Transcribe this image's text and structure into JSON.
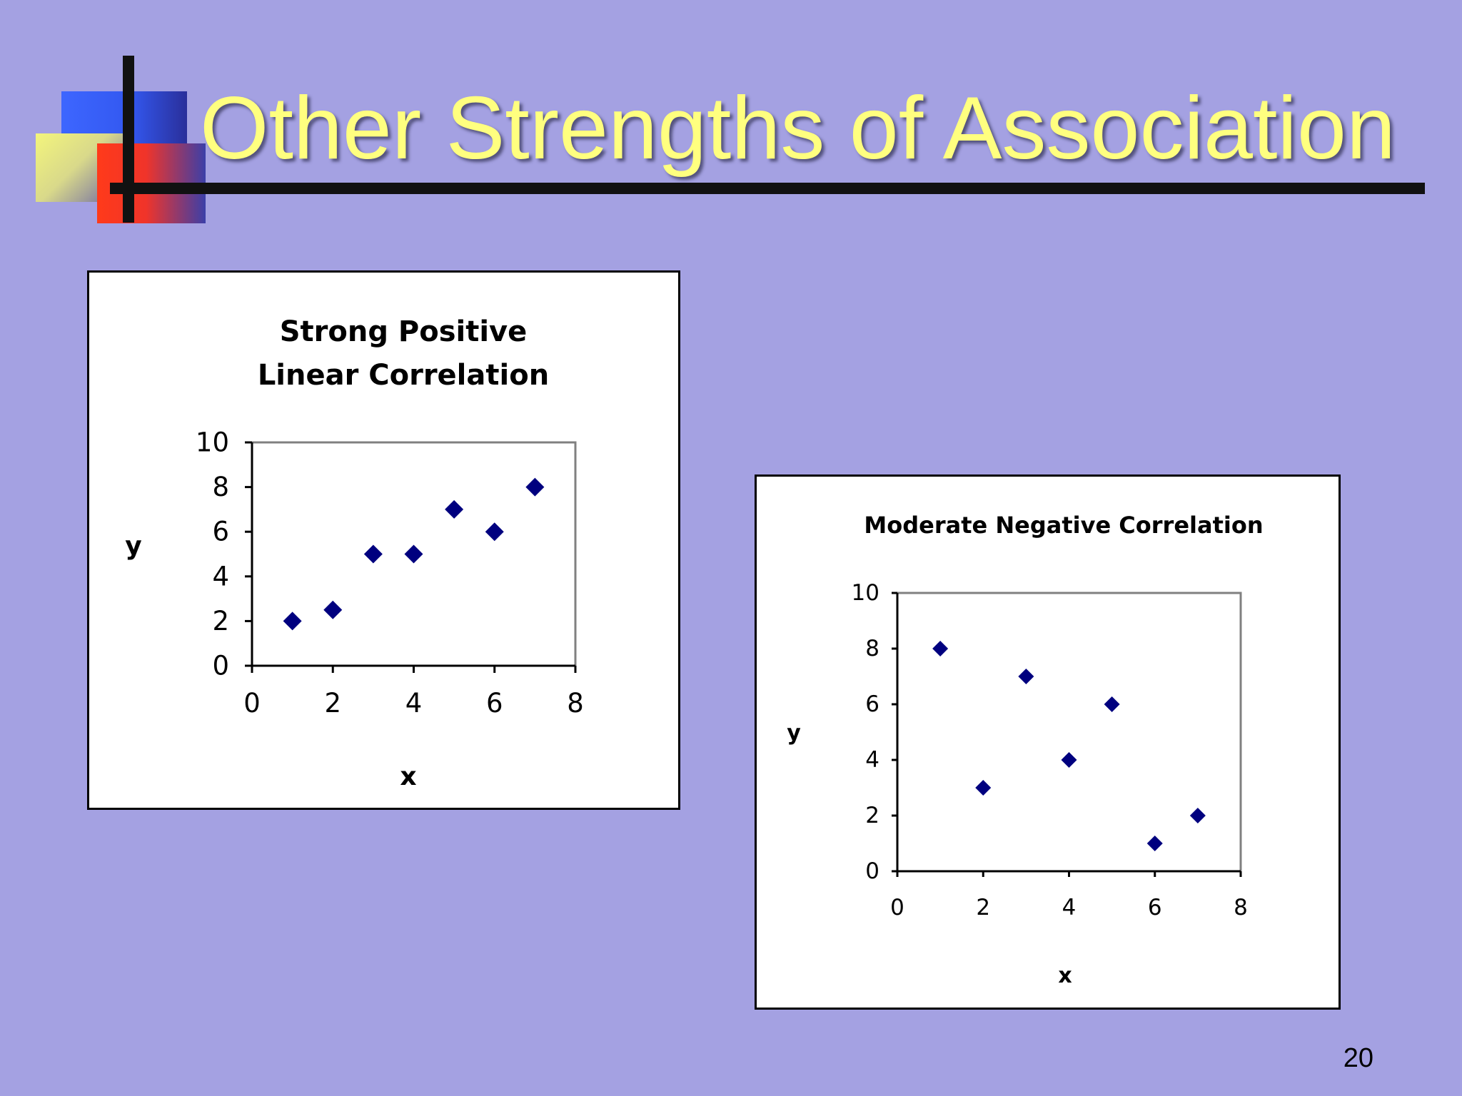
{
  "slide": {
    "title": "Other Strengths of Association",
    "page_number": "20"
  },
  "colors": {
    "background": "#a4a1e2",
    "title": "#ffff7f",
    "marker": "#00007f"
  },
  "chart_data": [
    {
      "type": "scatter",
      "title_lines": [
        "Strong Positive",
        "Linear Correlation"
      ],
      "xlabel": "x",
      "ylabel": "y",
      "xlim": [
        0,
        8
      ],
      "ylim": [
        0,
        10
      ],
      "xticks": [
        0,
        2,
        4,
        6,
        8
      ],
      "yticks": [
        0,
        2,
        4,
        6,
        8,
        10
      ],
      "grid": false,
      "marker": "diamond",
      "series": [
        {
          "x": [
            1,
            2,
            3,
            4,
            5,
            6,
            7
          ],
          "y": [
            2,
            2.5,
            5,
            5,
            7,
            6,
            8
          ]
        }
      ]
    },
    {
      "type": "scatter",
      "title_lines": [
        "Moderate Negative Correlation"
      ],
      "xlabel": "x",
      "ylabel": "y",
      "xlim": [
        0,
        8
      ],
      "ylim": [
        0,
        10
      ],
      "xticks": [
        0,
        2,
        4,
        6,
        8
      ],
      "yticks": [
        0,
        2,
        4,
        6,
        8,
        10
      ],
      "grid": false,
      "marker": "diamond",
      "series": [
        {
          "x": [
            1,
            2,
            3,
            4,
            5,
            6,
            7
          ],
          "y": [
            8,
            3,
            7,
            4,
            6,
            1,
            2
          ]
        }
      ]
    }
  ]
}
